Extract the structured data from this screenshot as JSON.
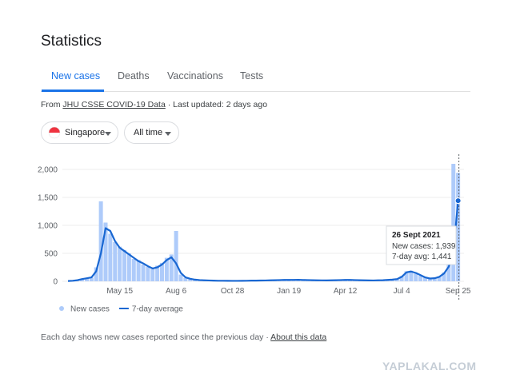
{
  "header": {
    "title": "Statistics"
  },
  "tabs": [
    "New cases",
    "Deaths",
    "Vaccinations",
    "Tests"
  ],
  "source": {
    "prefix": "From",
    "link": "JHU CSSE COVID-19 Data",
    "separator": "·",
    "updated": "Last updated: 2 days ago"
  },
  "filters": [
    "Singapore",
    "All time"
  ],
  "chart_data": {
    "type": "bar",
    "categories": [
      null,
      null,
      null,
      null,
      null,
      null,
      null,
      null,
      null,
      null,
      null,
      "May 15",
      null,
      null,
      null,
      null,
      null,
      null,
      null,
      null,
      null,
      null,
      null,
      "Aug 6",
      null,
      null,
      null,
      null,
      null,
      null,
      null,
      null,
      null,
      null,
      null,
      "Oct 28",
      null,
      null,
      null,
      null,
      null,
      null,
      null,
      null,
      null,
      null,
      null,
      "Jan 19",
      null,
      null,
      null,
      null,
      null,
      null,
      null,
      null,
      null,
      null,
      null,
      "Apr 12",
      null,
      null,
      null,
      null,
      null,
      null,
      null,
      null,
      null,
      null,
      null,
      "Jul 4",
      null,
      null,
      null,
      null,
      null,
      null,
      null,
      null,
      null,
      null,
      null,
      "Sep 25"
    ],
    "series": [
      {
        "name": "New cases",
        "type": "bar",
        "color": "#aecbfa",
        "values": [
          0,
          5,
          15,
          35,
          60,
          65,
          250,
          1430,
          1050,
          850,
          700,
          620,
          560,
          500,
          400,
          380,
          300,
          260,
          220,
          280,
          330,
          420,
          480,
          900,
          120,
          60,
          40,
          25,
          20,
          15,
          12,
          10,
          10,
          8,
          8,
          7,
          7,
          8,
          10,
          11,
          13,
          14,
          16,
          19,
          20,
          24,
          26,
          24,
          27,
          29,
          22,
          21,
          19,
          17,
          16,
          15,
          19,
          21,
          23,
          26,
          24,
          21,
          19,
          17,
          15,
          16,
          19,
          22,
          27,
          32,
          45,
          95,
          180,
          190,
          140,
          100,
          65,
          45,
          60,
          90,
          160,
          300,
          2100,
          1939
        ]
      },
      {
        "name": "7-day average",
        "type": "line",
        "color": "#1967d2",
        "values": [
          5,
          10,
          20,
          40,
          55,
          70,
          180,
          500,
          950,
          900,
          720,
          600,
          540,
          480,
          420,
          360,
          320,
          270,
          230,
          250,
          300,
          380,
          430,
          320,
          150,
          70,
          45,
          30,
          22,
          18,
          15,
          12,
          10,
          10,
          9,
          8,
          8,
          9,
          10,
          12,
          12,
          14,
          15,
          18,
          20,
          22,
          25,
          25,
          26,
          28,
          24,
          22,
          20,
          18,
          17,
          16,
          18,
          20,
          22,
          25,
          25,
          22,
          20,
          18,
          16,
          15,
          18,
          20,
          25,
          30,
          40,
          80,
          160,
          175,
          150,
          110,
          70,
          50,
          55,
          80,
          140,
          260,
          520,
          1441
        ]
      }
    ],
    "ylim": [
      0,
      2200
    ],
    "yticks": [
      0,
      500,
      {
        "value": 1000,
        "label": "1,000"
      },
      {
        "value": 1500,
        "label": "1,500"
      },
      {
        "value": 2000,
        "label": "2,000"
      }
    ],
    "grid": true
  },
  "tooltip": {
    "date": "26 Sept 2021",
    "new_cases": "New cases: 1,939",
    "avg": "7-day avg: 1,441"
  },
  "footer": {
    "note": "Each day shows new cases reported since the previous day",
    "link": "About this data"
  },
  "watermark": "YAPLAKAL.COM"
}
